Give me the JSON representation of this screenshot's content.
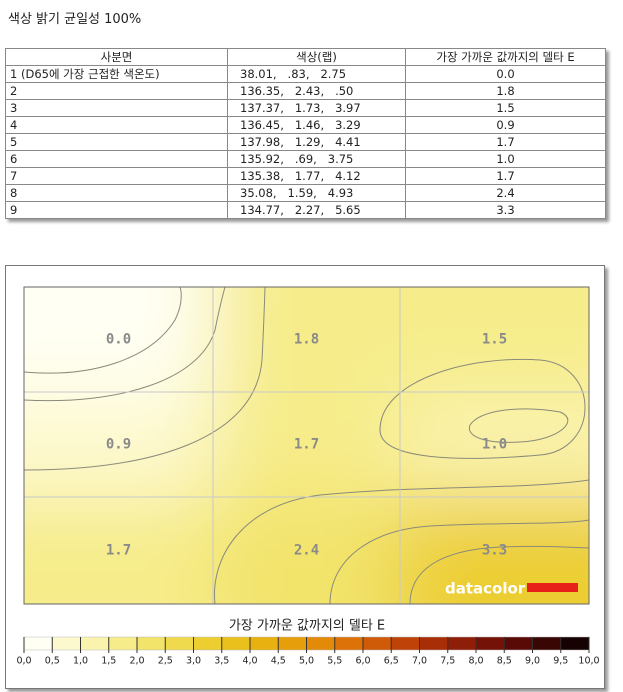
{
  "header": {
    "title": "색상 밝기 균일성 100%"
  },
  "table": {
    "columns": [
      "사분면",
      "색상(랩)",
      "가장 가까운 값까지의 델타 E"
    ],
    "rows": [
      [
        "1 (D65에 가장 근접한 색온도)",
        "38.01,   .83,   2.75",
        "0.0"
      ],
      [
        "2",
        "136.35,   2.43,   .50",
        "1.8"
      ],
      [
        "3",
        "137.37,   1.73,   3.97",
        "1.5"
      ],
      [
        "4",
        "136.45,   1.46,   3.29",
        "0.9"
      ],
      [
        "5",
        "137.98,   1.29,   4.41",
        "1.7"
      ],
      [
        "6",
        "135.92,   .69,   3.75",
        "1.0"
      ],
      [
        "7",
        "135.38,   1.77,   4.12",
        "1.7"
      ],
      [
        "8",
        "35.08,   1.59,   4.93",
        "2.4"
      ],
      [
        "9",
        "134.77,   2.27,   5.65",
        "3.3"
      ]
    ]
  },
  "heatmap": {
    "cells": [
      [
        "0.0",
        "1.8",
        "1.5"
      ],
      [
        "0.9",
        "1.7",
        "1.0"
      ],
      [
        "1.7",
        "2.4",
        "3.3"
      ]
    ],
    "logo": "datacolor",
    "colorbar": {
      "title": "가장 가까운 값까지의 델타 E",
      "ticks": [
        "0,0",
        "0,5",
        "1,0",
        "1,5",
        "2,0",
        "2,5",
        "3,0",
        "3,5",
        "4,0",
        "4,5",
        "5,0",
        "5,5",
        "6,0",
        "6,5",
        "7,0",
        "7,5",
        "8,0",
        "8,5",
        "9,0",
        "9,5",
        "10,0"
      ],
      "colors": [
        "#fffff4",
        "#fdf9cf",
        "#faf3ad",
        "#f6ec8a",
        "#f2e36a",
        "#efd94c",
        "#ecce30",
        "#eac11c",
        "#e8b110",
        "#e69f0a",
        "#e38a08",
        "#dc7208",
        "#cf5a08",
        "#bf4308",
        "#a82e08",
        "#8f1e08",
        "#751208",
        "#5a0a06",
        "#3a0604",
        "#160202"
      ]
    }
  }
}
